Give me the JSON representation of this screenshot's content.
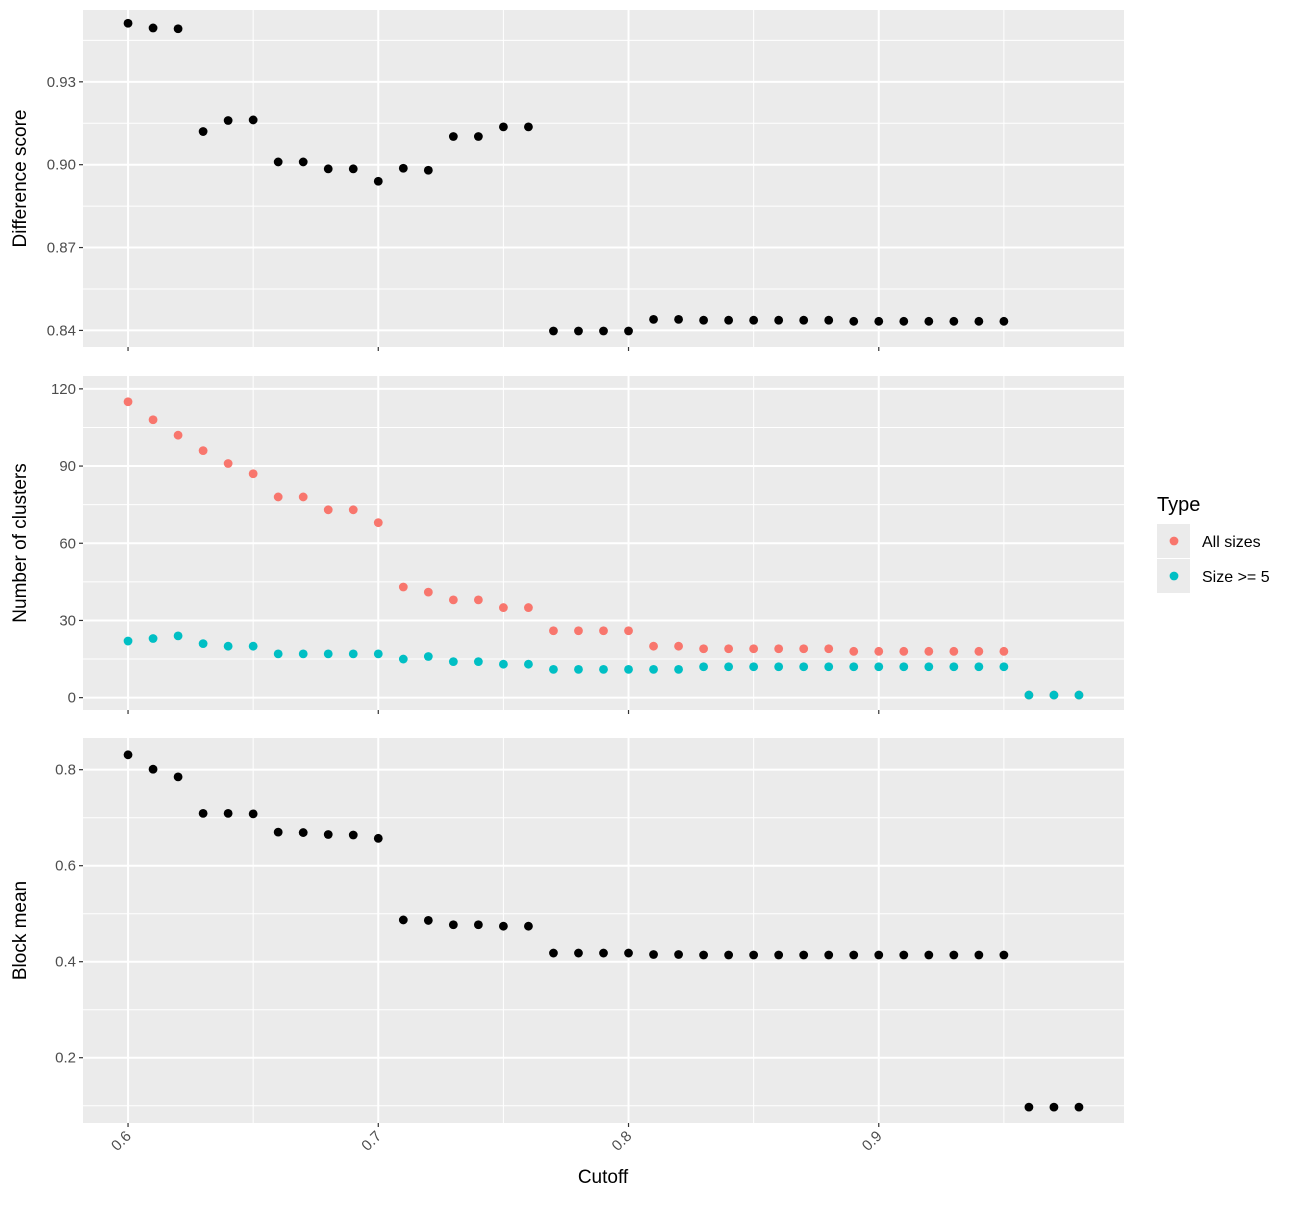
{
  "chart_data": [
    {
      "type": "scatter",
      "title": "",
      "xlabel": "",
      "ylabel": "Difference score",
      "xlim": [
        0.582,
        0.998
      ],
      "ylim": [
        0.834,
        0.956
      ],
      "grid": true,
      "x_ticks": [
        0.6,
        0.7,
        0.8,
        0.9
      ],
      "y_ticks": [
        0.84,
        0.87,
        0.9,
        0.93
      ],
      "y_tick_labels": [
        "0.84",
        "0.87",
        "0.90",
        "0.93"
      ],
      "series": [
        {
          "color": "#000000",
          "x": [
            0.6,
            0.61,
            0.62,
            0.63,
            0.64,
            0.65,
            0.66,
            0.67,
            0.68,
            0.69,
            0.7,
            0.71,
            0.72,
            0.73,
            0.74,
            0.75,
            0.76,
            0.77,
            0.78,
            0.79,
            0.8,
            0.81,
            0.82,
            0.83,
            0.84,
            0.85,
            0.86,
            0.87,
            0.88,
            0.89,
            0.9,
            0.91,
            0.92,
            0.93,
            0.94,
            0.95
          ],
          "y": [
            0.9512,
            0.9495,
            0.9492,
            0.912,
            0.916,
            0.9162,
            0.901,
            0.901,
            0.8985,
            0.8985,
            0.894,
            0.8987,
            0.898,
            0.9102,
            0.9102,
            0.9137,
            0.9137,
            0.8398,
            0.8398,
            0.8398,
            0.8398,
            0.844,
            0.844,
            0.8437,
            0.8437,
            0.8437,
            0.8437,
            0.8437,
            0.8437,
            0.8433,
            0.8433,
            0.8433,
            0.8433,
            0.8433,
            0.8433,
            0.8433
          ]
        }
      ]
    },
    {
      "type": "scatter",
      "title": "",
      "xlabel": "",
      "ylabel": "Number of clusters",
      "xlim": [
        0.582,
        0.998
      ],
      "ylim": [
        -4.8,
        125
      ],
      "grid": true,
      "x_ticks": [
        0.6,
        0.7,
        0.8,
        0.9
      ],
      "y_ticks": [
        0,
        30,
        60,
        90,
        120
      ],
      "y_tick_labels": [
        "0",
        "30",
        "60",
        "90",
        "120"
      ],
      "legend": {
        "title": "Type",
        "placement": "right",
        "entries": [
          "All sizes",
          "Size >= 5"
        ]
      },
      "series": [
        {
          "name": "All sizes",
          "color": "#F8766D",
          "x": [
            0.6,
            0.61,
            0.62,
            0.63,
            0.64,
            0.65,
            0.66,
            0.67,
            0.68,
            0.69,
            0.7,
            0.71,
            0.72,
            0.73,
            0.74,
            0.75,
            0.76,
            0.77,
            0.78,
            0.79,
            0.8,
            0.81,
            0.82,
            0.83,
            0.84,
            0.85,
            0.86,
            0.87,
            0.88,
            0.89,
            0.9,
            0.91,
            0.92,
            0.93,
            0.94,
            0.95,
            0.96,
            0.97,
            0.98
          ],
          "y": [
            115,
            108,
            102,
            96,
            91,
            87,
            78,
            78,
            73,
            73,
            68,
            43,
            41,
            38,
            38,
            35,
            35,
            26,
            26,
            26,
            26,
            20,
            20,
            19,
            19,
            19,
            19,
            19,
            19,
            18,
            18,
            18,
            18,
            18,
            18,
            18,
            1,
            1,
            1
          ]
        },
        {
          "name": "Size >= 5",
          "color": "#00BFC4",
          "x": [
            0.6,
            0.61,
            0.62,
            0.63,
            0.64,
            0.65,
            0.66,
            0.67,
            0.68,
            0.69,
            0.7,
            0.71,
            0.72,
            0.73,
            0.74,
            0.75,
            0.76,
            0.77,
            0.78,
            0.79,
            0.8,
            0.81,
            0.82,
            0.83,
            0.84,
            0.85,
            0.86,
            0.87,
            0.88,
            0.89,
            0.9,
            0.91,
            0.92,
            0.93,
            0.94,
            0.95,
            0.96,
            0.97,
            0.98
          ],
          "y": [
            22,
            23,
            24,
            21,
            20,
            20,
            17,
            17,
            17,
            17,
            17,
            15,
            16,
            14,
            14,
            13,
            13,
            11,
            11,
            11,
            11,
            11,
            11,
            12,
            12,
            12,
            12,
            12,
            12,
            12,
            12,
            12,
            12,
            12,
            12,
            12,
            1,
            1,
            1
          ]
        }
      ]
    },
    {
      "type": "scatter",
      "title": "",
      "xlabel": "Cutoff",
      "ylabel": "Block mean",
      "xlim": [
        0.582,
        0.998
      ],
      "ylim": [
        0.064,
        0.866
      ],
      "grid": true,
      "x_ticks": [
        0.6,
        0.7,
        0.8,
        0.9
      ],
      "x_tick_labels": [
        "0.6",
        "0.7",
        "0.8",
        "0.9"
      ],
      "y_ticks": [
        0.2,
        0.4,
        0.6,
        0.8
      ],
      "y_tick_labels": [
        "0.2",
        "0.4",
        "0.6",
        "0.8"
      ],
      "series": [
        {
          "color": "#000000",
          "x": [
            0.6,
            0.61,
            0.62,
            0.63,
            0.64,
            0.65,
            0.66,
            0.67,
            0.68,
            0.69,
            0.7,
            0.71,
            0.72,
            0.73,
            0.74,
            0.75,
            0.76,
            0.77,
            0.78,
            0.79,
            0.8,
            0.81,
            0.82,
            0.83,
            0.84,
            0.85,
            0.86,
            0.87,
            0.88,
            0.89,
            0.9,
            0.91,
            0.92,
            0.93,
            0.94,
            0.95,
            0.96,
            0.97,
            0.98
          ],
          "y": [
            0.831,
            0.801,
            0.785,
            0.709,
            0.709,
            0.708,
            0.67,
            0.669,
            0.665,
            0.664,
            0.657,
            0.487,
            0.486,
            0.477,
            0.477,
            0.474,
            0.474,
            0.418,
            0.418,
            0.418,
            0.418,
            0.415,
            0.415,
            0.414,
            0.414,
            0.414,
            0.414,
            0.414,
            0.414,
            0.414,
            0.414,
            0.414,
            0.414,
            0.414,
            0.414,
            0.414,
            0.097,
            0.097,
            0.097
          ]
        }
      ]
    }
  ]
}
